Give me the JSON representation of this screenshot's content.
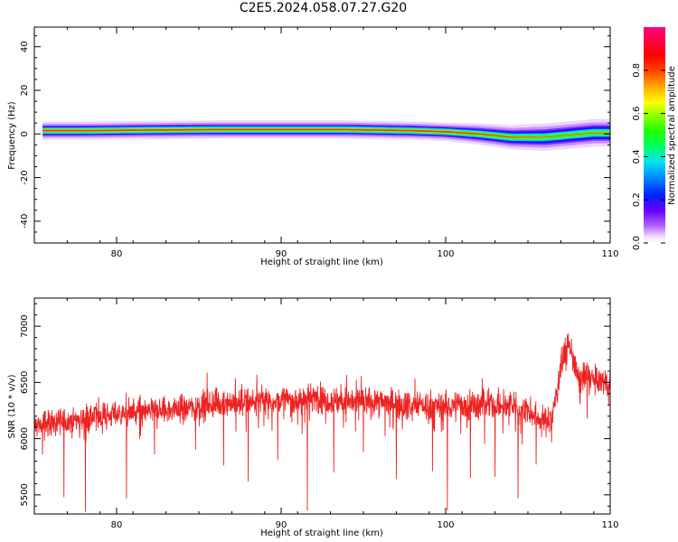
{
  "title": "C2E5.2024.058.07.27.G20",
  "chart_data": [
    {
      "type": "heatmap",
      "xlabel": "Height of straight line (km)",
      "ylabel": "Frequency (Hz)",
      "xlim": [
        75,
        110
      ],
      "ylim": [
        -50,
        49
      ],
      "xticks": [
        80,
        90,
        100,
        110
      ],
      "yticks": [
        -40,
        -20,
        0,
        20,
        40
      ],
      "ridge": {
        "x": [
          75.5,
          78,
          82,
          86,
          90,
          94,
          98,
          100,
          102,
          104,
          106,
          107.5,
          109,
          110
        ],
        "y": [
          1.5,
          1.5,
          1.8,
          2,
          2,
          2,
          1.5,
          1,
          0,
          -1.5,
          -1.5,
          -0.5,
          0.5,
          0.5
        ]
      },
      "colorbar": {
        "label": "Normalized spectral amplitude",
        "ticks": [
          "0.0",
          "0.2",
          "0.4",
          "0.6",
          "0.8"
        ],
        "range": [
          0,
          1
        ]
      }
    },
    {
      "type": "line",
      "xlabel": "Height of straight line (km)",
      "ylabel": "SNR (10 * v/v)",
      "xlim": [
        75,
        110
      ],
      "ylim": [
        5330,
        7250
      ],
      "xticks": [
        80,
        90,
        100,
        110
      ],
      "yticks": [
        5500,
        6000,
        6500,
        7000
      ],
      "series": [
        {
          "color": "#ee2222",
          "trend": {
            "x": [
              75,
              78,
              80,
              82,
              84,
              86,
              88,
              90,
              92,
              94,
              96,
              98,
              100,
              102,
              104,
              105,
              106,
              106.5,
              107,
              107.5,
              108,
              109,
              110
            ],
            "y": [
              6120,
              6180,
              6220,
              6240,
              6270,
              6310,
              6330,
              6340,
              6360,
              6330,
              6330,
              6300,
              6290,
              6300,
              6290,
              6240,
              6150,
              6200,
              6650,
              6850,
              6550,
              6520,
              6500
            ]
          },
          "spikes": {
            "x": [
              75.5,
              76.8,
              78.1,
              80.6,
              82.3,
              84.8,
              86.5,
              88.0,
              89.8,
              91.6,
              93.2,
              95.0,
              97.0,
              99.2,
              100.1,
              101.5,
              103.0,
              104.4,
              105.5,
              108.6
            ],
            "y": [
              5860,
              5480,
              5350,
              5470,
              5860,
              5900,
              5760,
              5620,
              5810,
              5360,
              5700,
              5880,
              5640,
              5710,
              5360,
              5650,
              5660,
              5470,
              5770,
              6180
            ]
          }
        }
      ]
    }
  ]
}
